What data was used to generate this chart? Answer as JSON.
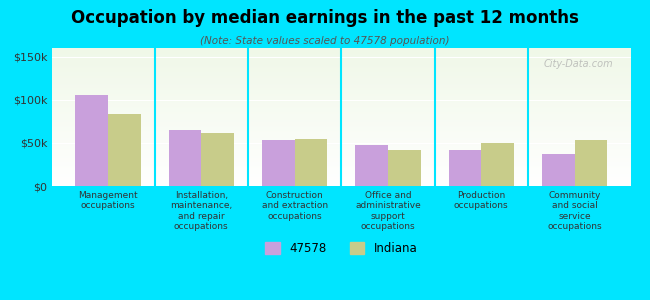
{
  "title": "Occupation by median earnings in the past 12 months",
  "subtitle": "(Note: State values scaled to 47578 population)",
  "categories": [
    "Management\noccupations",
    "Installation,\nmaintenance,\nand repair\noccupations",
    "Construction\nand extraction\noccupations",
    "Office and\nadministrative\nsupport\noccupations",
    "Production\noccupations",
    "Community\nand social\nservice\noccupations"
  ],
  "values_city": [
    105000,
    65000,
    53000,
    47000,
    42000,
    37000
  ],
  "values_state": [
    83000,
    62000,
    55000,
    42000,
    50000,
    53000
  ],
  "color_city": "#c9a0dc",
  "color_state": "#c8cc8a",
  "ylim": [
    0,
    160000
  ],
  "yticks": [
    0,
    50000,
    100000,
    150000
  ],
  "ytick_labels": [
    "$0",
    "$50k",
    "$100k",
    "$150k"
  ],
  "legend_city": "47578",
  "legend_state": "Indiana",
  "background_color": "#00e5ff",
  "plot_bg_top": "#f0f8e8",
  "plot_bg_bottom": "#ffffff",
  "watermark": "City-Data.com"
}
